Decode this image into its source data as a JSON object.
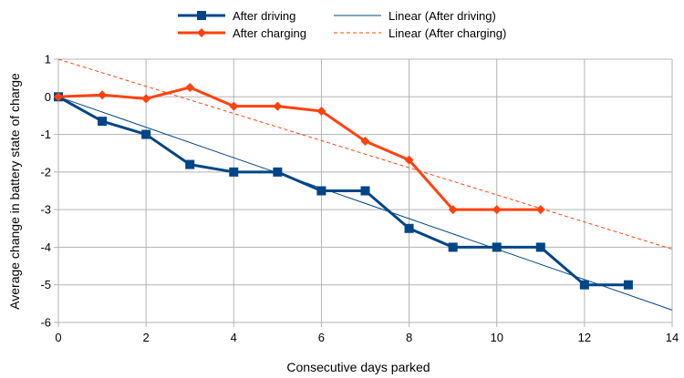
{
  "chart_data": {
    "type": "line",
    "title": "",
    "xlabel": "Consecutive days parked",
    "ylabel": "Average change in battery state of charge",
    "xlim": [
      0,
      14
    ],
    "ylim": [
      -6,
      1
    ],
    "x_ticks": [
      0,
      2,
      4,
      6,
      8,
      10,
      12,
      14
    ],
    "y_ticks": [
      1,
      0,
      -1,
      -2,
      -3,
      -4,
      -5,
      -6
    ],
    "grid": true,
    "legend_position": "top",
    "series": [
      {
        "name": "After driving",
        "color": "#004586",
        "marker": "square",
        "x": [
          0,
          1,
          2,
          3,
          4,
          5,
          6,
          7,
          8,
          9,
          10,
          11,
          12,
          13
        ],
        "y": [
          0,
          -0.65,
          -1,
          -1.8,
          -2,
          -2,
          -2.5,
          -2.5,
          -3.5,
          -4,
          -4,
          -4,
          -5,
          -5
        ]
      },
      {
        "name": "After charging",
        "color": "#ff420e",
        "marker": "diamond",
        "x": [
          0,
          1,
          2,
          3,
          4,
          5,
          6,
          7,
          8,
          9,
          10,
          11
        ],
        "y": [
          0,
          0.05,
          -0.05,
          0.25,
          -0.25,
          -0.25,
          -0.38,
          -1.18,
          -1.68,
          -3,
          -3,
          -3
        ]
      }
    ],
    "trendlines": [
      {
        "name": "Linear (After driving)",
        "color": "#004586",
        "style": "solid",
        "x": [
          0,
          14
        ],
        "y": [
          0,
          -5.67
        ]
      },
      {
        "name": "Linear (After charging)",
        "color": "#ff420e",
        "style": "dashed",
        "x": [
          0,
          14
        ],
        "y": [
          1,
          -4.05
        ]
      }
    ]
  }
}
